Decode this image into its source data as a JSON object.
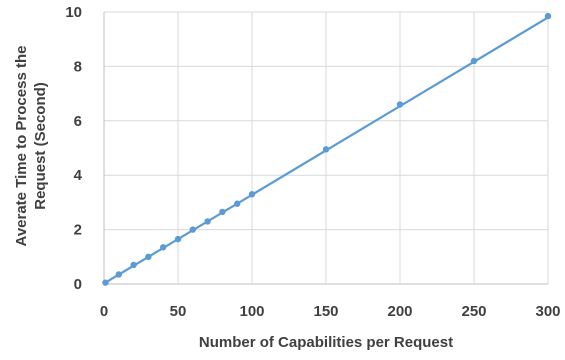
{
  "chart_data": {
    "type": "scatter",
    "title": "",
    "xlabel": "Number of Capabilities per Request",
    "ylabel_lines": [
      "Averate Time to Process the",
      "Request (Second)"
    ],
    "xlim": [
      0,
      300
    ],
    "ylim": [
      0,
      10
    ],
    "x_ticks": [
      "0",
      "50",
      "100",
      "150",
      "200",
      "250",
      "300"
    ],
    "y_ticks": [
      "0",
      "2",
      "4",
      "6",
      "8",
      "10"
    ],
    "grid": true,
    "legend": "none",
    "color": "#5b9bd5",
    "series": [
      {
        "x": [
          1,
          10,
          20,
          30,
          40,
          50,
          60,
          70,
          80,
          90,
          100,
          150,
          200,
          250,
          300
        ],
        "y": [
          0.05,
          0.35,
          0.7,
          1.0,
          1.35,
          1.65,
          2.0,
          2.3,
          2.65,
          2.95,
          3.3,
          4.95,
          6.6,
          8.2,
          9.85
        ]
      }
    ],
    "trendline": {
      "type": "linear",
      "x": [
        0,
        300
      ],
      "y": [
        0.02,
        9.8
      ]
    }
  }
}
